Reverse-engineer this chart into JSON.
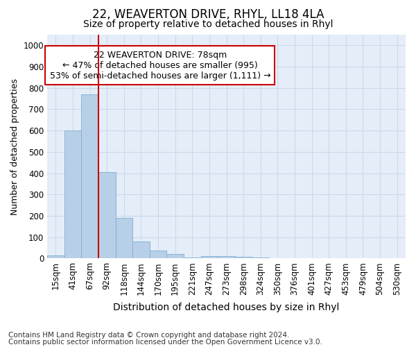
{
  "title1": "22, WEAVERTON DRIVE, RHYL, LL18 4LA",
  "title2": "Size of property relative to detached houses in Rhyl",
  "xlabel": "Distribution of detached houses by size in Rhyl",
  "ylabel": "Number of detached properties",
  "footnote1": "Contains HM Land Registry data © Crown copyright and database right 2024.",
  "footnote2": "Contains public sector information licensed under the Open Government Licence v3.0.",
  "categories": [
    "15sqm",
    "41sqm",
    "67sqm",
    "92sqm",
    "118sqm",
    "144sqm",
    "170sqm",
    "195sqm",
    "221sqm",
    "247sqm",
    "273sqm",
    "298sqm",
    "324sqm",
    "350sqm",
    "376sqm",
    "401sqm",
    "427sqm",
    "453sqm",
    "479sqm",
    "504sqm",
    "530sqm"
  ],
  "bar_heights": [
    15,
    600,
    770,
    405,
    190,
    80,
    37,
    20,
    5,
    12,
    12,
    7,
    3,
    2,
    1,
    1,
    1,
    1,
    1,
    1,
    1
  ],
  "bar_color": "#b8cfe8",
  "bar_edge_color": "#7aafd4",
  "red_line_x": 2.5,
  "annotation_text": "22 WEAVERTON DRIVE: 78sqm\n← 47% of detached houses are smaller (995)\n53% of semi-detached houses are larger (1,111) →",
  "annotation_box_color": "#cc0000",
  "ylim": [
    0,
    1050
  ],
  "yticks": [
    0,
    100,
    200,
    300,
    400,
    500,
    600,
    700,
    800,
    900,
    1000
  ],
  "grid_color": "#c8d8ec",
  "bg_color": "#e4edf8",
  "title1_fontsize": 12,
  "title2_fontsize": 10,
  "xlabel_fontsize": 10,
  "ylabel_fontsize": 9,
  "tick_fontsize": 8.5,
  "annot_fontsize": 9,
  "footnote_fontsize": 7.5
}
